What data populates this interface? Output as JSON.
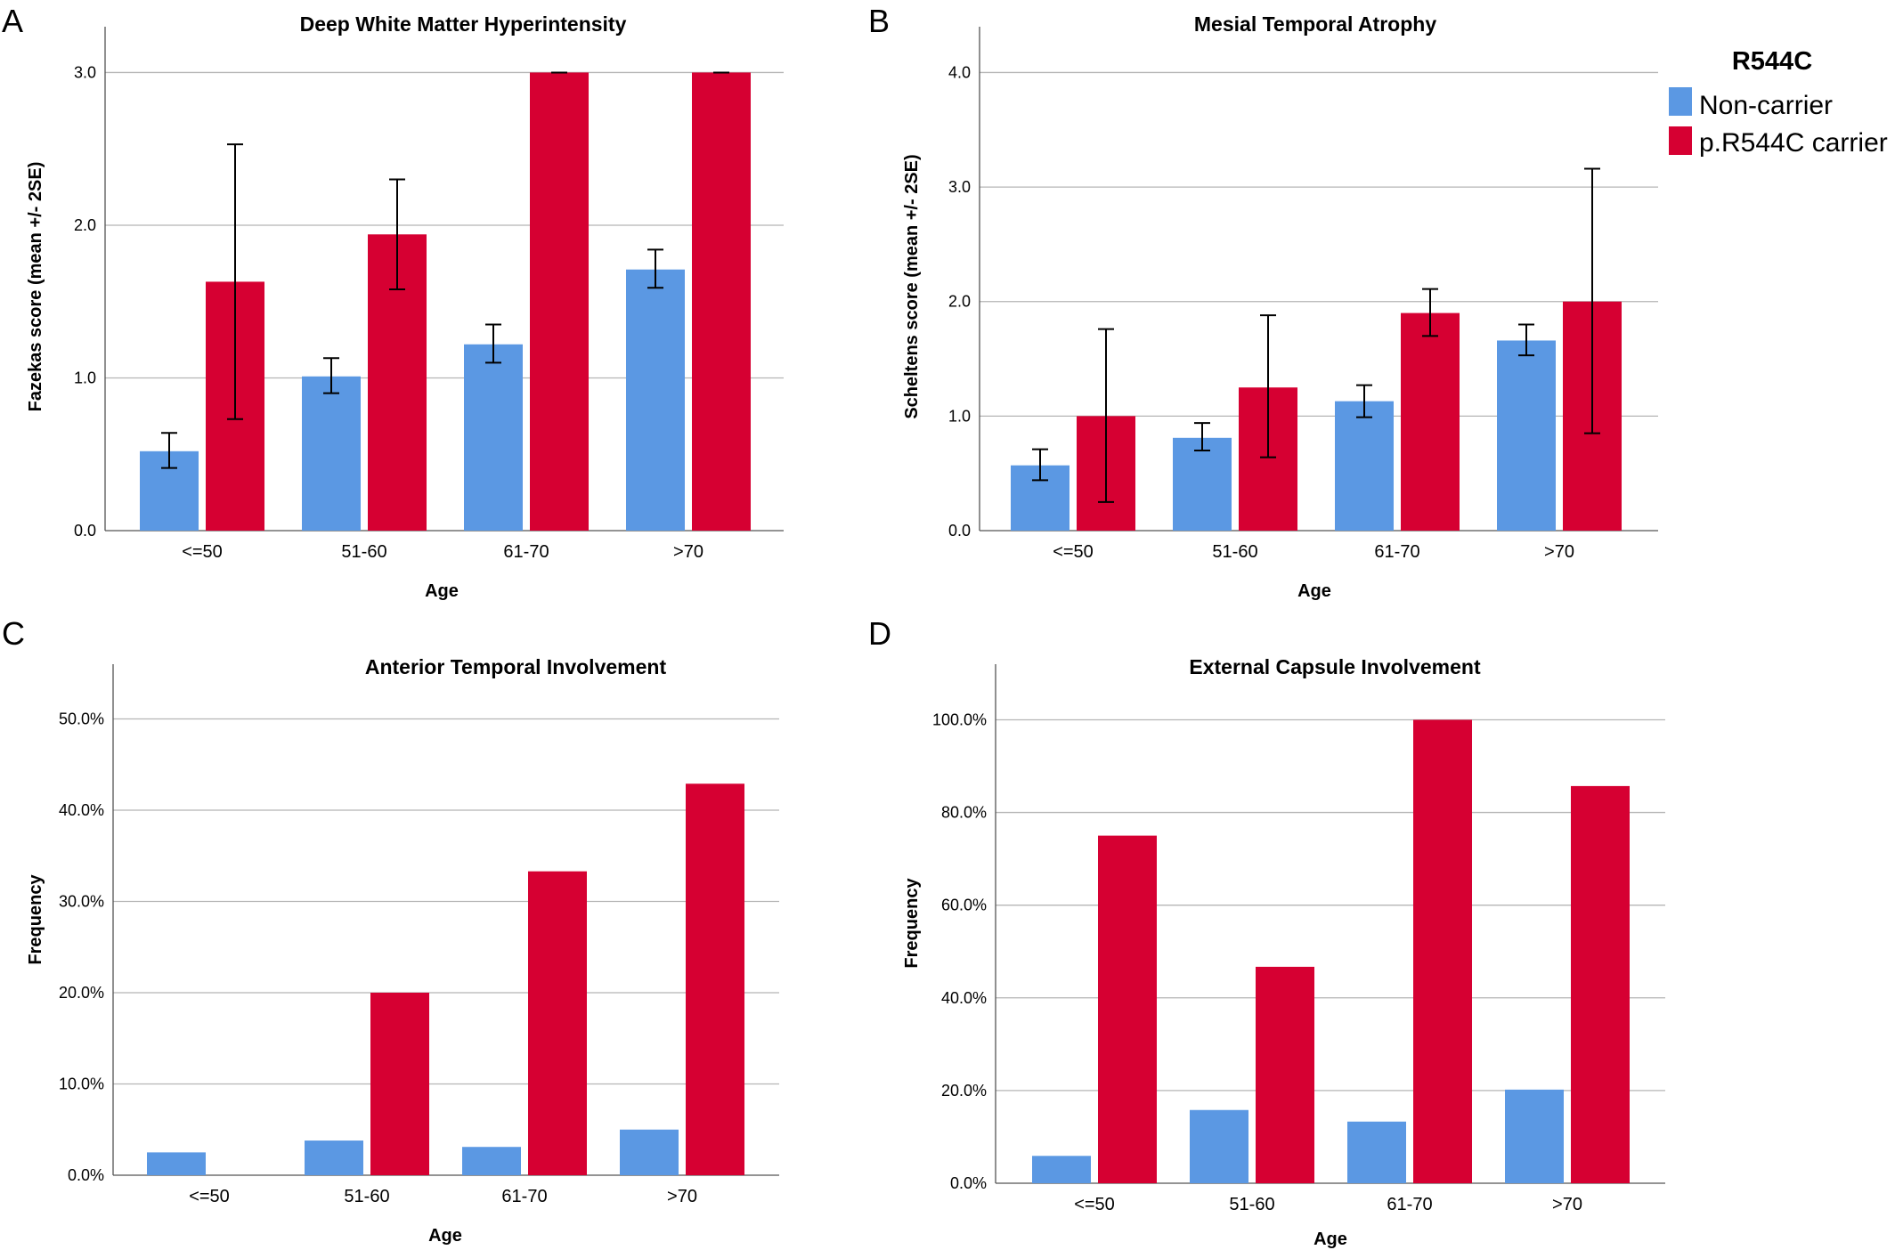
{
  "legend": {
    "title": "R544C",
    "entries": [
      {
        "label": "Non-carrier",
        "color": "#5b98e3"
      },
      {
        "label": "p.R544C carrier",
        "color": "#d60032"
      }
    ]
  },
  "chart_data": [
    {
      "panel": "A",
      "type": "bar",
      "title": "Deep White Matter Hyperintensity",
      "xlabel": "Age",
      "ylabel": "Fazekas score (mean +/- 2SE)",
      "categories": [
        "<=50",
        "51-60",
        "61-70",
        ">70"
      ],
      "ylim": [
        0,
        3.3
      ],
      "yticks": [
        0,
        1,
        2,
        3
      ],
      "ytick_labels": [
        "0.0",
        "1.0",
        "2.0",
        "3.0"
      ],
      "grid": true,
      "series": [
        {
          "name": "Non-carrier",
          "values": [
            0.52,
            1.01,
            1.22,
            1.71
          ],
          "err_low": [
            0.41,
            0.9,
            1.1,
            1.59
          ],
          "err_high": [
            0.64,
            1.13,
            1.35,
            1.84
          ]
        },
        {
          "name": "p.R544C carrier",
          "values": [
            1.63,
            1.94,
            3.0,
            3.0
          ],
          "err_low": [
            0.73,
            1.58,
            3.0,
            3.0
          ],
          "err_high": [
            2.53,
            2.3,
            3.0,
            3.0
          ]
        }
      ]
    },
    {
      "panel": "B",
      "type": "bar",
      "title": "Mesial Temporal Atrophy",
      "xlabel": "Age",
      "ylabel": "Scheltens score (mean +/- 2SE)",
      "categories": [
        "<=50",
        "51-60",
        "61-70",
        ">70"
      ],
      "ylim": [
        0,
        4.4
      ],
      "yticks": [
        0,
        1,
        2,
        3,
        4
      ],
      "ytick_labels": [
        "0.0",
        "1.0",
        "2.0",
        "3.0",
        "4.0"
      ],
      "grid": true,
      "series": [
        {
          "name": "Non-carrier",
          "values": [
            0.57,
            0.81,
            1.13,
            1.66
          ],
          "err_low": [
            0.44,
            0.7,
            0.99,
            1.53
          ],
          "err_high": [
            0.71,
            0.94,
            1.27,
            1.8
          ]
        },
        {
          "name": "p.R544C carrier",
          "values": [
            1.0,
            1.25,
            1.9,
            2.0
          ],
          "err_low": [
            0.25,
            0.64,
            1.7,
            0.85
          ],
          "err_high": [
            1.76,
            1.88,
            2.11,
            3.16
          ]
        }
      ]
    },
    {
      "panel": "C",
      "type": "bar",
      "title": "Anterior Temporal Involvement",
      "xlabel": "Age",
      "ylabel": "Frequency",
      "categories": [
        "<=50",
        "51-60",
        "61-70",
        ">70"
      ],
      "ylim": [
        0,
        56
      ],
      "yticks": [
        0,
        10,
        20,
        30,
        40,
        50
      ],
      "ytick_labels": [
        "0.0%",
        "10.0%",
        "20.0%",
        "30.0%",
        "40.0%",
        "50.0%"
      ],
      "grid": true,
      "series": [
        {
          "name": "Non-carrier",
          "values": [
            2.5,
            3.8,
            3.1,
            5.0
          ]
        },
        {
          "name": "p.R544C carrier",
          "values": [
            0,
            20.0,
            33.3,
            42.9
          ]
        }
      ]
    },
    {
      "panel": "D",
      "type": "bar",
      "title": "External Capsule Involvement",
      "xlabel": "Age",
      "ylabel": "Frequency",
      "categories": [
        "<=50",
        "51-60",
        "61-70",
        ">70"
      ],
      "ylim": [
        0,
        112
      ],
      "yticks": [
        0,
        20,
        40,
        60,
        80,
        100
      ],
      "ytick_labels": [
        "0.0%",
        "20.0%",
        "40.0%",
        "60.0%",
        "80.0%",
        "100.0%"
      ],
      "grid": true,
      "series": [
        {
          "name": "Non-carrier",
          "values": [
            5.9,
            15.8,
            13.3,
            20.2
          ]
        },
        {
          "name": "p.R544C carrier",
          "values": [
            75.0,
            46.7,
            100.0,
            85.7
          ]
        }
      ]
    }
  ]
}
